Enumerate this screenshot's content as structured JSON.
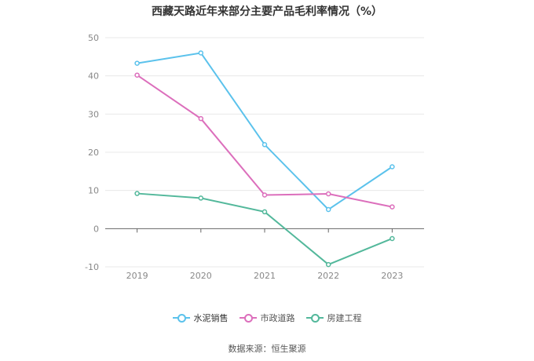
{
  "chart_data": {
    "type": "line",
    "title": "西藏天路近年来部分主要产品毛利率情况（%）",
    "categories": [
      "2019",
      "2020",
      "2021",
      "2022",
      "2023"
    ],
    "ylim": [
      -10,
      50
    ],
    "yticks": [
      "50",
      "40",
      "30",
      "20",
      "10",
      "0",
      "-10"
    ],
    "grid": true,
    "legend_position": "bottom",
    "series": [
      {
        "name": "水泥销售",
        "color": "#5bc2ec",
        "values": [
          43.3,
          46.0,
          22.0,
          5.0,
          16.2
        ]
      },
      {
        "name": "市政道路",
        "color": "#dc6fbc",
        "values": [
          40.2,
          28.8,
          8.8,
          9.1,
          5.7
        ]
      },
      {
        "name": "房建工程",
        "color": "#53b89b",
        "values": [
          9.2,
          8.0,
          4.4,
          -9.4,
          -2.6
        ]
      }
    ]
  },
  "footer": {
    "source": "数据来源：恒生聚源"
  }
}
